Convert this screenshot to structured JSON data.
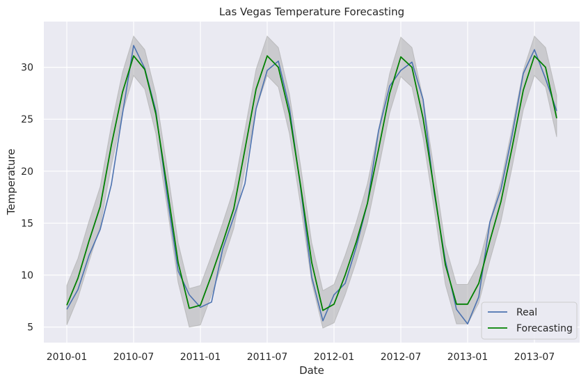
{
  "chart_data": {
    "type": "line",
    "title": "Las Vegas Temperature Forecasting",
    "xlabel": "Date",
    "ylabel": "Temperature",
    "x_ticks": [
      "2010-01",
      "2010-07",
      "2011-01",
      "2011-07",
      "2012-01",
      "2012-07",
      "2013-01",
      "2013-07"
    ],
    "y_ticks": [
      5,
      10,
      15,
      20,
      25,
      30
    ],
    "ylim": [
      3.5,
      34.4
    ],
    "grid": true,
    "legend_placement": "lower-right",
    "x": [
      "2010-01",
      "2010-02",
      "2010-03",
      "2010-04",
      "2010-05",
      "2010-06",
      "2010-07",
      "2010-08",
      "2010-09",
      "2010-10",
      "2010-11",
      "2010-12",
      "2011-01",
      "2011-02",
      "2011-03",
      "2011-04",
      "2011-05",
      "2011-06",
      "2011-07",
      "2011-08",
      "2011-09",
      "2011-10",
      "2011-11",
      "2011-12",
      "2012-01",
      "2012-02",
      "2012-03",
      "2012-04",
      "2012-05",
      "2012-06",
      "2012-07",
      "2012-08",
      "2012-09",
      "2012-10",
      "2012-11",
      "2012-12",
      "2013-01",
      "2013-02",
      "2013-03",
      "2013-04",
      "2013-05",
      "2013-06",
      "2013-07",
      "2013-08",
      "2013-09"
    ],
    "series": [
      {
        "name": "Real",
        "color": "#4c72b0",
        "values": [
          6.7,
          8.6,
          11.9,
          14.4,
          18.7,
          25.5,
          32.1,
          29.9,
          25.8,
          17.7,
          10.4,
          8.1,
          6.9,
          7.4,
          12.5,
          15.6,
          18.8,
          26.0,
          29.7,
          30.6,
          26.1,
          18.4,
          9.8,
          5.6,
          8.1,
          9.2,
          12.7,
          16.9,
          23.9,
          28.2,
          29.7,
          30.5,
          26.9,
          17.9,
          11.4,
          6.7,
          5.3,
          7.9,
          15.1,
          18.3,
          23.5,
          29.4,
          31.7,
          28.9,
          25.8
        ]
      },
      {
        "name": "Forecasting",
        "color": "#008000",
        "values": [
          7.1,
          9.7,
          13.3,
          16.6,
          22.5,
          27.6,
          31.1,
          29.8,
          25.5,
          18.5,
          11.2,
          6.8,
          7.1,
          10.0,
          13.1,
          16.4,
          22.1,
          27.9,
          31.1,
          30.0,
          25.5,
          18.6,
          11.2,
          6.6,
          7.2,
          10.0,
          13.2,
          16.9,
          22.1,
          27.5,
          31.0,
          30.0,
          25.1,
          18.2,
          11.0,
          7.2,
          7.2,
          9.2,
          13.3,
          17.1,
          22.3,
          27.8,
          31.1,
          30.0,
          25.1
        ]
      }
    ],
    "band": {
      "color": "#a9a9a9",
      "lower": [
        5.2,
        7.8,
        11.3,
        14.7,
        20.5,
        25.6,
        29.2,
        27.9,
        23.6,
        16.6,
        9.3,
        5.0,
        5.2,
        8.1,
        11.2,
        14.5,
        20.2,
        26.0,
        29.2,
        28.1,
        23.6,
        16.7,
        9.3,
        4.9,
        5.4,
        8.1,
        11.3,
        15.0,
        20.2,
        25.6,
        29.1,
        28.1,
        23.2,
        16.3,
        9.1,
        5.3,
        5.3,
        7.3,
        11.4,
        15.2,
        20.4,
        25.9,
        29.2,
        28.1,
        23.3
      ],
      "upper": [
        9.0,
        11.6,
        15.2,
        18.5,
        24.4,
        29.5,
        33.0,
        31.7,
        27.4,
        20.4,
        13.1,
        8.7,
        9.0,
        11.9,
        15.0,
        18.3,
        24.0,
        29.8,
        33.0,
        31.9,
        27.4,
        20.5,
        13.1,
        8.5,
        9.1,
        11.9,
        15.1,
        18.8,
        24.0,
        29.4,
        32.9,
        31.9,
        27.0,
        20.1,
        12.9,
        9.1,
        9.1,
        11.1,
        15.2,
        19.0,
        24.2,
        29.7,
        33.0,
        31.9,
        27.3
      ]
    },
    "style": {
      "plot_background": "#eaeaf2",
      "grid_color": "#ffffff"
    }
  }
}
